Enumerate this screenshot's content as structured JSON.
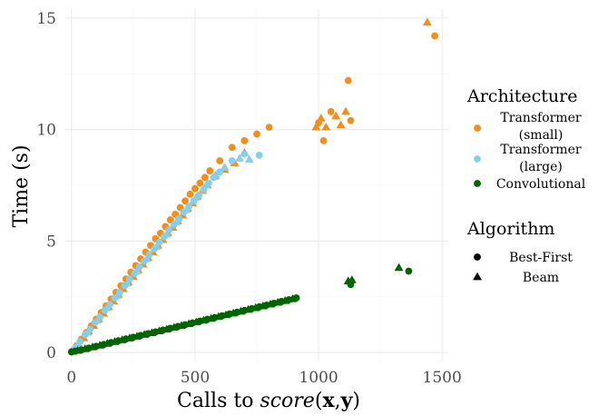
{
  "chart_data": {
    "type": "scatter",
    "title": "",
    "xlabel": {
      "prefix": "Calls to ",
      "func": "score",
      "open": "(",
      "arg1": "x",
      "comma": ",",
      "arg2": "y",
      "close": ")"
    },
    "ylabel": "Time (s)",
    "xlim": [
      -25,
      1525
    ],
    "ylim": [
      -0.4,
      15.4
    ],
    "xticks": [
      0,
      500,
      1000,
      1500
    ],
    "xtick_labels": [
      "0",
      "500",
      "1000",
      "1500"
    ],
    "yticks": [
      0,
      5,
      10,
      15
    ],
    "ytick_labels": [
      "0",
      "5",
      "10",
      "15"
    ],
    "grid": true,
    "legend_position": "right",
    "colors": {
      "Transformer (small)": "#f28e1c",
      "Transformer (large)": "#87ceeb",
      "Convolutional": "#006400"
    },
    "legends": [
      {
        "title": "Architecture",
        "items": [
          {
            "label_lines": [
              "Transformer",
              "(small)"
            ],
            "color": "#f28e1c",
            "marker": "circle"
          },
          {
            "label_lines": [
              "Transformer",
              "(large)"
            ],
            "color": "#87ceeb",
            "marker": "circle"
          },
          {
            "label_lines": [
              "Convolutional"
            ],
            "color": "#006400",
            "marker": "circle"
          }
        ]
      },
      {
        "title": "Algorithm",
        "items": [
          {
            "label_lines": [
              "Best-First"
            ],
            "color": "#000000",
            "marker": "circle"
          },
          {
            "label_lines": [
              "Beam"
            ],
            "color": "#000000",
            "marker": "triangle"
          }
        ]
      }
    ],
    "series": [
      {
        "architecture": "Transformer (small)",
        "algorithm": "Best-First",
        "marker": "circle",
        "points": [
          [
            5,
            0.08
          ],
          [
            20,
            0.3
          ],
          [
            40,
            0.6
          ],
          [
            60,
            0.9
          ],
          [
            80,
            1.2
          ],
          [
            100,
            1.5
          ],
          [
            120,
            1.8
          ],
          [
            140,
            2.1
          ],
          [
            160,
            2.4
          ],
          [
            180,
            2.7
          ],
          [
            200,
            3.0
          ],
          [
            220,
            3.3
          ],
          [
            240,
            3.6
          ],
          [
            260,
            3.9
          ],
          [
            280,
            4.2
          ],
          [
            300,
            4.5
          ],
          [
            320,
            4.8
          ],
          [
            340,
            5.1
          ],
          [
            360,
            5.35
          ],
          [
            380,
            5.65
          ],
          [
            400,
            5.95
          ],
          [
            420,
            6.2
          ],
          [
            440,
            6.5
          ],
          [
            460,
            6.8
          ],
          [
            480,
            7.1
          ],
          [
            500,
            7.35
          ],
          [
            520,
            7.6
          ],
          [
            540,
            7.85
          ],
          [
            560,
            8.15
          ],
          [
            600,
            8.6
          ],
          [
            650,
            9.2
          ],
          [
            700,
            9.5
          ],
          [
            750,
            9.8
          ],
          [
            800,
            10.1
          ],
          [
            1000,
            10.3
          ],
          [
            1020,
            9.5
          ],
          [
            1050,
            10.8
          ],
          [
            1120,
            12.2
          ],
          [
            1130,
            10.4
          ],
          [
            1470,
            14.2
          ]
        ]
      },
      {
        "architecture": "Transformer (small)",
        "algorithm": "Beam",
        "marker": "triangle",
        "points": [
          [
            10,
            0.1
          ],
          [
            30,
            0.35
          ],
          [
            50,
            0.65
          ],
          [
            70,
            0.95
          ],
          [
            90,
            1.2
          ],
          [
            110,
            1.5
          ],
          [
            130,
            1.75
          ],
          [
            150,
            2.05
          ],
          [
            170,
            2.3
          ],
          [
            190,
            2.6
          ],
          [
            210,
            2.85
          ],
          [
            230,
            3.15
          ],
          [
            250,
            3.4
          ],
          [
            270,
            3.7
          ],
          [
            290,
            3.95
          ],
          [
            310,
            4.25
          ],
          [
            330,
            4.5
          ],
          [
            350,
            4.8
          ],
          [
            370,
            5.05
          ],
          [
            390,
            5.35
          ],
          [
            410,
            5.6
          ],
          [
            430,
            5.9
          ],
          [
            450,
            6.15
          ],
          [
            470,
            6.45
          ],
          [
            490,
            6.7
          ],
          [
            510,
            7.0
          ],
          [
            530,
            7.25
          ],
          [
            550,
            7.5
          ],
          [
            580,
            7.9
          ],
          [
            620,
            8.2
          ],
          [
            660,
            8.5
          ],
          [
            700,
            8.95
          ],
          [
            990,
            10.1
          ],
          [
            1010,
            10.5
          ],
          [
            1030,
            10.1
          ],
          [
            1070,
            10.6
          ],
          [
            1090,
            10.2
          ],
          [
            1110,
            10.8
          ],
          [
            1440,
            14.8
          ]
        ]
      },
      {
        "architecture": "Transformer (large)",
        "algorithm": "Best-First",
        "marker": "circle",
        "points": [
          [
            15,
            0.2
          ],
          [
            35,
            0.5
          ],
          [
            55,
            0.8
          ],
          [
            75,
            1.05
          ],
          [
            95,
            1.35
          ],
          [
            115,
            1.6
          ],
          [
            135,
            1.9
          ],
          [
            155,
            2.15
          ],
          [
            175,
            2.45
          ],
          [
            195,
            2.7
          ],
          [
            215,
            3.0
          ],
          [
            235,
            3.3
          ],
          [
            255,
            3.55
          ],
          [
            275,
            3.85
          ],
          [
            295,
            4.1
          ],
          [
            315,
            4.4
          ],
          [
            335,
            4.65
          ],
          [
            355,
            4.95
          ],
          [
            375,
            5.2
          ],
          [
            395,
            5.5
          ],
          [
            415,
            5.75
          ],
          [
            435,
            6.0
          ],
          [
            455,
            6.3
          ],
          [
            475,
            6.55
          ],
          [
            495,
            6.8
          ],
          [
            515,
            7.05
          ],
          [
            535,
            7.3
          ],
          [
            555,
            7.6
          ],
          [
            575,
            7.85
          ],
          [
            600,
            8.1
          ],
          [
            650,
            8.6
          ],
          [
            700,
            8.9
          ],
          [
            760,
            8.85
          ]
        ]
      },
      {
        "architecture": "Transformer (large)",
        "algorithm": "Beam",
        "marker": "triangle",
        "points": [
          [
            25,
            0.35
          ],
          [
            65,
            0.9
          ],
          [
            105,
            1.45
          ],
          [
            145,
            2.0
          ],
          [
            185,
            2.55
          ],
          [
            225,
            3.1
          ],
          [
            265,
            3.65
          ],
          [
            305,
            4.2
          ],
          [
            345,
            4.75
          ],
          [
            385,
            5.3
          ],
          [
            425,
            5.85
          ],
          [
            465,
            6.4
          ],
          [
            505,
            6.95
          ],
          [
            545,
            7.5
          ],
          [
            585,
            7.95
          ],
          [
            620,
            8.3
          ],
          [
            680,
            8.7
          ],
          [
            720,
            8.65
          ]
        ]
      },
      {
        "architecture": "Convolutional",
        "algorithm": "Best-First",
        "marker": "circle",
        "points": [
          [
            0,
            0.03
          ],
          [
            15,
            0.06
          ],
          [
            40,
            0.12
          ],
          [
            70,
            0.2
          ],
          [
            100,
            0.28
          ],
          [
            130,
            0.36
          ],
          [
            160,
            0.45
          ],
          [
            190,
            0.53
          ],
          [
            220,
            0.61
          ],
          [
            250,
            0.69
          ],
          [
            280,
            0.77
          ],
          [
            310,
            0.85
          ],
          [
            340,
            0.93
          ],
          [
            370,
            1.01
          ],
          [
            400,
            1.09
          ],
          [
            430,
            1.17
          ],
          [
            460,
            1.25
          ],
          [
            490,
            1.33
          ],
          [
            520,
            1.41
          ],
          [
            550,
            1.49
          ],
          [
            580,
            1.57
          ],
          [
            610,
            1.65
          ],
          [
            640,
            1.73
          ],
          [
            670,
            1.81
          ],
          [
            700,
            1.89
          ],
          [
            730,
            1.97
          ],
          [
            760,
            2.05
          ],
          [
            790,
            2.13
          ],
          [
            820,
            2.21
          ],
          [
            850,
            2.29
          ],
          [
            880,
            2.37
          ],
          [
            910,
            2.45
          ],
          [
            1130,
            3.05
          ],
          [
            1365,
            3.65
          ]
        ]
      },
      {
        "architecture": "Convolutional",
        "algorithm": "Beam",
        "marker": "triangle",
        "points": [
          [
            25,
            0.09
          ],
          [
            55,
            0.16
          ],
          [
            85,
            0.24
          ],
          [
            115,
            0.32
          ],
          [
            145,
            0.4
          ],
          [
            175,
            0.48
          ],
          [
            205,
            0.56
          ],
          [
            235,
            0.64
          ],
          [
            265,
            0.72
          ],
          [
            295,
            0.8
          ],
          [
            325,
            0.88
          ],
          [
            355,
            0.96
          ],
          [
            385,
            1.04
          ],
          [
            415,
            1.12
          ],
          [
            445,
            1.2
          ],
          [
            475,
            1.28
          ],
          [
            505,
            1.36
          ],
          [
            535,
            1.44
          ],
          [
            565,
            1.52
          ],
          [
            595,
            1.6
          ],
          [
            625,
            1.68
          ],
          [
            655,
            1.76
          ],
          [
            685,
            1.84
          ],
          [
            715,
            1.92
          ],
          [
            745,
            2.0
          ],
          [
            775,
            2.08
          ],
          [
            805,
            2.16
          ],
          [
            835,
            2.24
          ],
          [
            865,
            2.32
          ],
          [
            895,
            2.4
          ],
          [
            1120,
            3.2
          ],
          [
            1135,
            3.25
          ],
          [
            1325,
            3.8
          ]
        ]
      }
    ]
  }
}
